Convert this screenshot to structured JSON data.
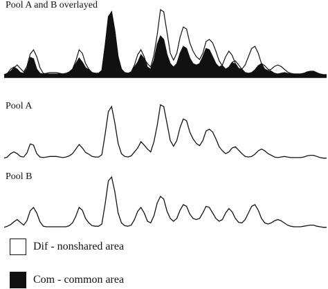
{
  "chart_data": [
    {
      "type": "area",
      "title": "Pool A and B overlayed",
      "x": [
        0,
        1,
        2,
        3,
        4,
        5,
        6,
        7,
        8,
        9,
        10,
        11,
        12,
        13,
        14,
        15,
        16,
        17,
        18,
        19,
        20,
        21,
        22,
        23,
        24,
        25,
        26,
        27,
        28,
        29,
        30,
        31,
        32,
        33,
        34,
        35,
        36,
        37,
        38,
        39,
        40,
        41,
        42,
        43,
        44,
        45,
        46,
        47,
        48,
        49,
        50,
        51,
        52,
        53,
        54,
        55,
        56,
        57,
        58,
        59,
        60,
        61,
        62,
        63,
        64,
        65,
        66,
        67,
        68,
        69,
        70,
        71,
        72,
        73,
        74,
        75,
        76,
        77,
        78,
        79,
        80,
        81,
        82,
        83,
        84,
        85,
        86,
        87,
        88,
        89,
        90,
        91,
        92,
        93,
        94,
        95,
        96,
        97,
        98,
        99
      ],
      "series": [
        {
          "name": "Pool A",
          "values": [
            0.04,
            0.06,
            0.12,
            0.15,
            0.12,
            0.07,
            0.06,
            0.13,
            0.29,
            0.27,
            0.12,
            0.06,
            0.05,
            0.06,
            0.07,
            0.07,
            0.07,
            0.06,
            0.05,
            0.06,
            0.08,
            0.12,
            0.2,
            0.28,
            0.22,
            0.14,
            0.11,
            0.07,
            0.06,
            0.06,
            0.1,
            0.46,
            0.86,
            0.95,
            0.66,
            0.3,
            0.12,
            0.07,
            0.06,
            0.08,
            0.15,
            0.22,
            0.33,
            0.27,
            0.2,
            0.15,
            0.33,
            0.62,
            0.98,
            0.95,
            0.65,
            0.35,
            0.25,
            0.35,
            0.58,
            0.73,
            0.7,
            0.5,
            0.38,
            0.3,
            0.26,
            0.35,
            0.52,
            0.55,
            0.5,
            0.38,
            0.24,
            0.17,
            0.12,
            0.15,
            0.22,
            0.24,
            0.18,
            0.12,
            0.07,
            0.06,
            0.07,
            0.11,
            0.17,
            0.2,
            0.17,
            0.12,
            0.09,
            0.06,
            0.05,
            0.06,
            0.07,
            0.06,
            0.05,
            0.05,
            0.05,
            0.05,
            0.06,
            0.08,
            0.09,
            0.09,
            0.07,
            0.05,
            0.04,
            0.04
          ]
        },
        {
          "name": "Pool B",
          "values": [
            0.04,
            0.06,
            0.09,
            0.14,
            0.18,
            0.13,
            0.08,
            0.16,
            0.34,
            0.4,
            0.3,
            0.14,
            0.06,
            0.05,
            0.05,
            0.05,
            0.05,
            0.05,
            0.05,
            0.05,
            0.07,
            0.12,
            0.24,
            0.4,
            0.35,
            0.2,
            0.12,
            0.07,
            0.06,
            0.06,
            0.1,
            0.46,
            0.88,
            0.95,
            0.68,
            0.3,
            0.12,
            0.07,
            0.06,
            0.08,
            0.18,
            0.33,
            0.4,
            0.3,
            0.15,
            0.12,
            0.25,
            0.48,
            0.6,
            0.55,
            0.33,
            0.2,
            0.15,
            0.2,
            0.35,
            0.45,
            0.42,
            0.28,
            0.2,
            0.18,
            0.2,
            0.3,
            0.42,
            0.4,
            0.3,
            0.2,
            0.15,
            0.18,
            0.3,
            0.38,
            0.32,
            0.2,
            0.13,
            0.12,
            0.18,
            0.3,
            0.42,
            0.45,
            0.35,
            0.2,
            0.12,
            0.1,
            0.12,
            0.16,
            0.18,
            0.16,
            0.12,
            0.08,
            0.06,
            0.05,
            0.05,
            0.05,
            0.06,
            0.07,
            0.08,
            0.08,
            0.06,
            0.05,
            0.04,
            0.04
          ]
        }
      ],
      "legend": [
        {
          "label": "Dif - nonshared area",
          "fill": "#ffffff"
        },
        {
          "label": "Com - common area",
          "fill": "#111111"
        }
      ],
      "grid": false
    },
    {
      "type": "line",
      "title": "Pool A",
      "x": [
        0,
        1,
        2,
        3,
        4,
        5,
        6,
        7,
        8,
        9,
        10,
        11,
        12,
        13,
        14,
        15,
        16,
        17,
        18,
        19,
        20,
        21,
        22,
        23,
        24,
        25,
        26,
        27,
        28,
        29,
        30,
        31,
        32,
        33,
        34,
        35,
        36,
        37,
        38,
        39,
        40,
        41,
        42,
        43,
        44,
        45,
        46,
        47,
        48,
        49,
        50,
        51,
        52,
        53,
        54,
        55,
        56,
        57,
        58,
        59,
        60,
        61,
        62,
        63,
        64,
        65,
        66,
        67,
        68,
        69,
        70,
        71,
        72,
        73,
        74,
        75,
        76,
        77,
        78,
        79,
        80,
        81,
        82,
        83,
        84,
        85,
        86,
        87,
        88,
        89,
        90,
        91,
        92,
        93,
        94,
        95,
        96,
        97,
        98,
        99
      ],
      "series": [
        {
          "name": "Pool A",
          "values": [
            0.04,
            0.06,
            0.12,
            0.15,
            0.12,
            0.07,
            0.06,
            0.13,
            0.29,
            0.27,
            0.12,
            0.06,
            0.05,
            0.06,
            0.07,
            0.07,
            0.07,
            0.06,
            0.05,
            0.06,
            0.08,
            0.12,
            0.2,
            0.28,
            0.22,
            0.14,
            0.11,
            0.07,
            0.06,
            0.06,
            0.1,
            0.46,
            0.86,
            0.95,
            0.66,
            0.3,
            0.12,
            0.07,
            0.06,
            0.08,
            0.15,
            0.22,
            0.33,
            0.27,
            0.2,
            0.15,
            0.33,
            0.62,
            0.98,
            0.95,
            0.65,
            0.35,
            0.25,
            0.35,
            0.58,
            0.73,
            0.7,
            0.5,
            0.38,
            0.3,
            0.26,
            0.35,
            0.52,
            0.55,
            0.5,
            0.38,
            0.24,
            0.17,
            0.12,
            0.15,
            0.22,
            0.24,
            0.18,
            0.12,
            0.07,
            0.06,
            0.07,
            0.11,
            0.17,
            0.2,
            0.17,
            0.12,
            0.09,
            0.06,
            0.05,
            0.06,
            0.07,
            0.06,
            0.05,
            0.05,
            0.05,
            0.05,
            0.06,
            0.08,
            0.09,
            0.09,
            0.07,
            0.05,
            0.04,
            0.04
          ]
        }
      ],
      "grid": false
    },
    {
      "type": "line",
      "title": "Pool B",
      "x": [
        0,
        1,
        2,
        3,
        4,
        5,
        6,
        7,
        8,
        9,
        10,
        11,
        12,
        13,
        14,
        15,
        16,
        17,
        18,
        19,
        20,
        21,
        22,
        23,
        24,
        25,
        26,
        27,
        28,
        29,
        30,
        31,
        32,
        33,
        34,
        35,
        36,
        37,
        38,
        39,
        40,
        41,
        42,
        43,
        44,
        45,
        46,
        47,
        48,
        49,
        50,
        51,
        52,
        53,
        54,
        55,
        56,
        57,
        58,
        59,
        60,
        61,
        62,
        63,
        64,
        65,
        66,
        67,
        68,
        69,
        70,
        71,
        72,
        73,
        74,
        75,
        76,
        77,
        78,
        79,
        80,
        81,
        82,
        83,
        84,
        85,
        86,
        87,
        88,
        89,
        90,
        91,
        92,
        93,
        94,
        95,
        96,
        97,
        98,
        99
      ],
      "series": [
        {
          "name": "Pool B",
          "values": [
            0.04,
            0.06,
            0.09,
            0.14,
            0.18,
            0.13,
            0.08,
            0.16,
            0.34,
            0.4,
            0.3,
            0.14,
            0.06,
            0.05,
            0.05,
            0.05,
            0.05,
            0.05,
            0.05,
            0.05,
            0.07,
            0.12,
            0.24,
            0.4,
            0.35,
            0.2,
            0.12,
            0.07,
            0.06,
            0.06,
            0.1,
            0.46,
            0.88,
            0.95,
            0.68,
            0.3,
            0.12,
            0.07,
            0.06,
            0.08,
            0.18,
            0.33,
            0.4,
            0.3,
            0.15,
            0.12,
            0.25,
            0.48,
            0.6,
            0.55,
            0.33,
            0.2,
            0.15,
            0.2,
            0.35,
            0.45,
            0.42,
            0.28,
            0.2,
            0.18,
            0.2,
            0.3,
            0.42,
            0.4,
            0.3,
            0.2,
            0.15,
            0.18,
            0.3,
            0.38,
            0.32,
            0.2,
            0.13,
            0.12,
            0.18,
            0.3,
            0.42,
            0.45,
            0.35,
            0.2,
            0.12,
            0.1,
            0.12,
            0.16,
            0.18,
            0.16,
            0.12,
            0.08,
            0.06,
            0.05,
            0.05,
            0.05,
            0.06,
            0.07,
            0.08,
            0.08,
            0.06,
            0.05,
            0.04,
            0.04
          ]
        }
      ],
      "grid": false
    }
  ]
}
